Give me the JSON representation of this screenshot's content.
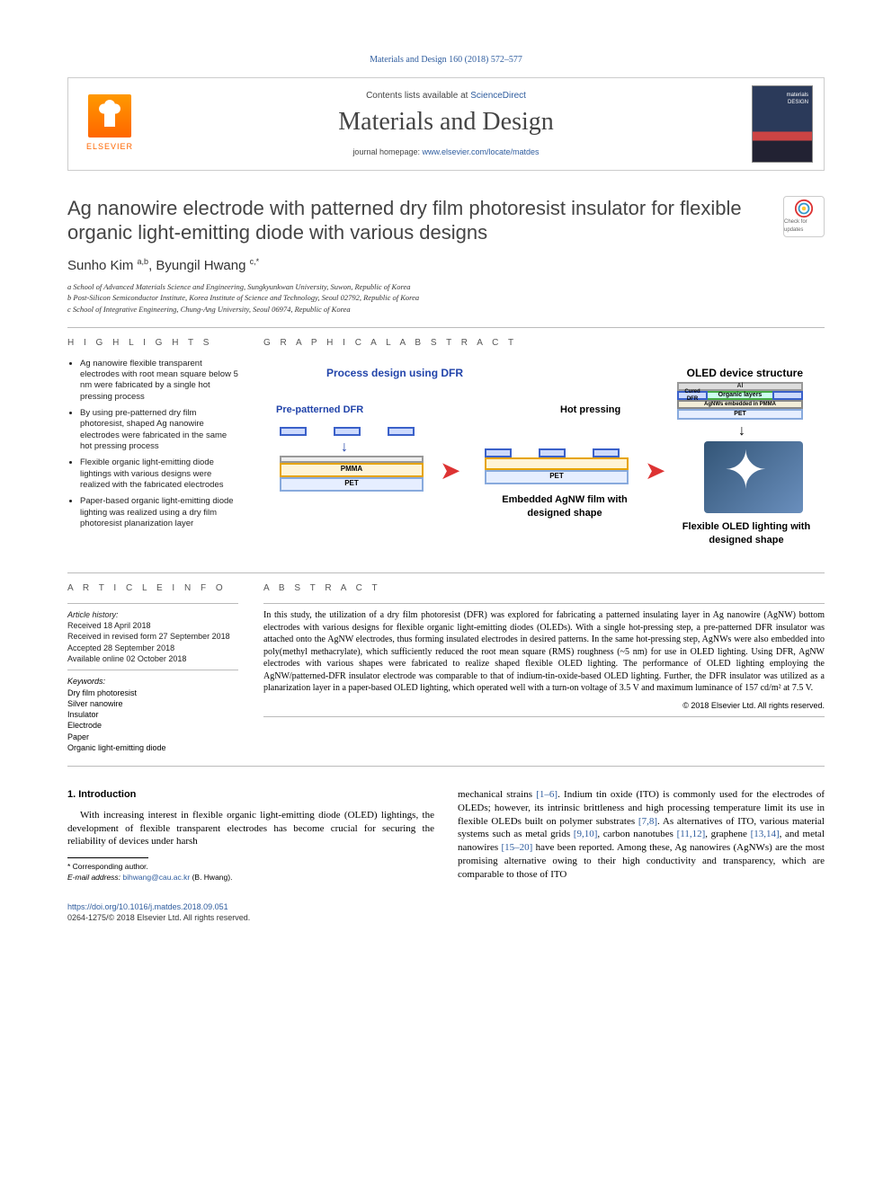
{
  "citation": "Materials and Design 160 (2018) 572–577",
  "header": {
    "contents_prefix": "Contents lists available at ",
    "contents_link": "ScienceDirect",
    "journal": "Materials and Design",
    "homepage_prefix": "journal homepage: ",
    "homepage_url": "www.elsevier.com/locate/matdes",
    "publisher_wordmark": "ELSEVIER"
  },
  "title": "Ag nanowire electrode with patterned dry film photoresist insulator for flexible organic light-emitting diode with various designs",
  "updates_badge": "Check for updates",
  "authors_html": "Sunho Kim <sup>a,b</sup>, Byungil Hwang <sup>c,*</sup>",
  "affiliations": [
    "a  School of Advanced Materials Science and Engineering, Sungkyunkwan University, Suwon, Republic of Korea",
    "b  Post-Silicon Semiconductor Institute, Korea Institute of Science and Technology, Seoul 02792, Republic of Korea",
    "c  School of Integrative Engineering, Chung-Ang University, Seoul 06974, Republic of Korea"
  ],
  "highlights_label": "H I G H L I G H T S",
  "highlights": [
    "Ag nanowire flexible transparent electrodes with root mean square below 5 nm were fabricated by a single hot pressing process",
    "By using pre-patterned dry film photoresist, shaped Ag nanowire electrodes were fabricated in the same hot pressing process",
    "Flexible organic light-emitting diode lightings with various designs were realized with the fabricated electrodes",
    "Paper-based organic light-emitting diode lighting was realized using a dry film photoresist planarization layer"
  ],
  "graphical_label": "G R A P H I C A L   A B S T R A C T",
  "ga": {
    "left_title": "Process design using DFR",
    "right_title": "OLED device structure",
    "pre_patterned": "Pre-patterned DFR",
    "hot_pressing": "Hot pressing",
    "pmma": "PMMA",
    "pet": "PET",
    "al": "Al",
    "organic": "Organic layers",
    "cured_dfr": "Cured DFR",
    "agnw_pmma": "AgNWs embedded in PMMA",
    "caption1": "Embedded AgNW film with designed shape",
    "caption2": "Flexible OLED lighting with designed shape"
  },
  "article_info_label": "A R T I C L E   I N F O",
  "article_info": {
    "history_label": "Article history:",
    "received": "Received 18 April 2018",
    "revised": "Received in revised form 27 September 2018",
    "accepted": "Accepted 28 September 2018",
    "online": "Available online 02 October 2018"
  },
  "keywords_label": "Keywords:",
  "keywords": [
    "Dry film photoresist",
    "Silver nanowire",
    "Insulator",
    "Electrode",
    "Paper",
    "Organic light-emitting diode"
  ],
  "abstract_label": "A B S T R A C T",
  "abstract": "In this study, the utilization of a dry film photoresist (DFR) was explored for fabricating a patterned insulating layer in Ag nanowire (AgNW) bottom electrodes with various designs for flexible organic light-emitting diodes (OLEDs). With a single hot-pressing step, a pre-patterned DFR insulator was attached onto the AgNW electrodes, thus forming insulated electrodes in desired patterns. In the same hot-pressing step, AgNWs were also embedded into poly(methyl methacrylate), which sufficiently reduced the root mean square (RMS) roughness (~5 nm) for use in OLED lighting. Using DFR, AgNW electrodes with various shapes were fabricated to realize shaped flexible OLED lighting. The performance of OLED lighting employing the AgNW/patterned-DFR insulator electrode was comparable to that of indium-tin-oxide-based OLED lighting. Further, the DFR insulator was utilized as a planarization layer in a paper-based OLED lighting, which operated well with a turn-on voltage of 3.5 V and maximum luminance of 157 cd/m² at 7.5 V.",
  "abstract_copyright": "© 2018 Elsevier Ltd. All rights reserved.",
  "intro_heading": "1. Introduction",
  "intro_p1": "With increasing interest in flexible organic light-emitting diode (OLED) lightings, the development of flexible transparent electrodes has become crucial for securing the reliability of devices under harsh",
  "intro_p2_a": "mechanical strains ",
  "intro_p2_ref1": "[1–6]",
  "intro_p2_b": ". Indium tin oxide (ITO) is commonly used for the electrodes of OLEDs; however, its intrinsic brittleness and high processing temperature limit its use in flexible OLEDs built on polymer substrates ",
  "intro_p2_ref2": "[7,8]",
  "intro_p2_c": ". As alternatives of ITO, various material systems such as metal grids ",
  "intro_p2_ref3": "[9,10]",
  "intro_p2_d": ", carbon nanotubes ",
  "intro_p2_ref4": "[11,12]",
  "intro_p2_e": ", graphene ",
  "intro_p2_ref5": "[13,14]",
  "intro_p2_f": ", and metal nanowires ",
  "intro_p2_ref6": "[15–20]",
  "intro_p2_g": " have been reported. Among these, Ag nanowires (AgNWs) are the most promising alternative owing to their high conductivity and transparency, which are comparable to those of ITO",
  "corr_label": "* Corresponding author.",
  "corr_email_label": "E-mail address: ",
  "corr_email": "bihwang@cau.ac.kr",
  "corr_name": " (B. Hwang).",
  "footer": {
    "doi": "https://doi.org/10.1016/j.matdes.2018.09.051",
    "issn_line": "0264-1275/© 2018 Elsevier Ltd. All rights reserved."
  },
  "colors": {
    "link": "#2e5c9e",
    "elsevier_orange": "#f60",
    "dfr_blue": "#3a60c9",
    "pmma_border": "#e6a400",
    "pet_border": "#88aadd",
    "arrow_red": "#d33"
  }
}
